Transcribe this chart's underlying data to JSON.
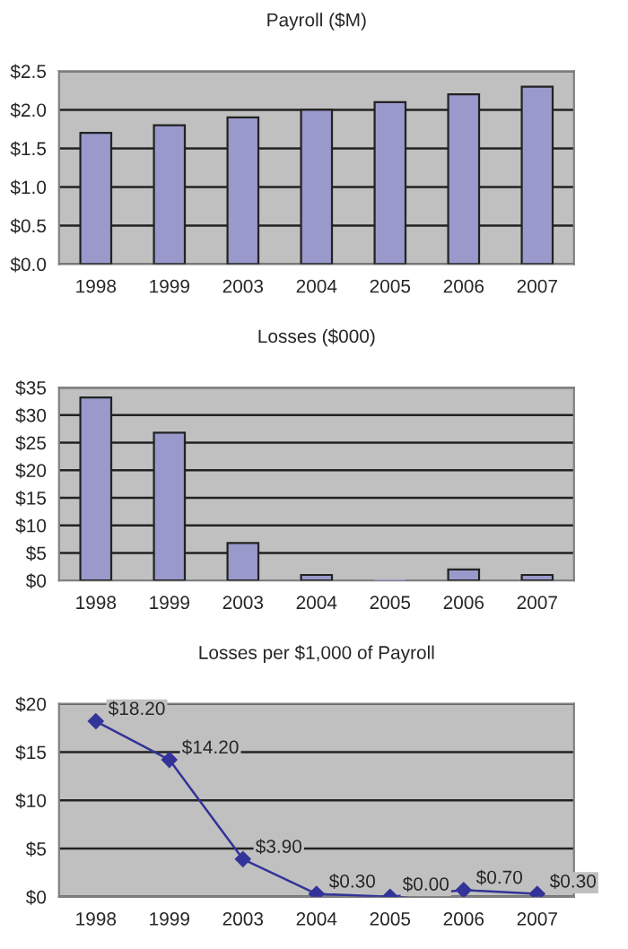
{
  "chart_data": [
    {
      "type": "bar",
      "title": "Payroll ($M)",
      "categories": [
        "1998",
        "1999",
        "2003",
        "2004",
        "2005",
        "2006",
        "2007"
      ],
      "values": [
        1.7,
        1.8,
        1.9,
        2.0,
        2.1,
        2.2,
        2.3
      ],
      "color": "#9999cc",
      "ylim": [
        0,
        2.5
      ],
      "yticks": [
        {
          "value": 0,
          "label": "$0.0"
        },
        {
          "value": 0.5,
          "label": "$0.5"
        },
        {
          "value": 1.0,
          "label": "$1.0"
        },
        {
          "value": 1.5,
          "label": "$1.5"
        },
        {
          "value": 2.0,
          "label": "$2.0"
        },
        {
          "value": 2.5,
          "label": "$2.5"
        }
      ],
      "grid": "y"
    },
    {
      "type": "bar",
      "title": "Losses ($000)",
      "categories": [
        "1998",
        "1999",
        "2003",
        "2004",
        "2005",
        "2006",
        "2007"
      ],
      "values": [
        33.2,
        26.8,
        6.8,
        1.0,
        0,
        2.0,
        1.0
      ],
      "color": "#9999cc",
      "ylim": [
        0,
        35
      ],
      "yticks": [
        {
          "value": 0,
          "label": "$0"
        },
        {
          "value": 5,
          "label": "$5"
        },
        {
          "value": 10,
          "label": "$10"
        },
        {
          "value": 15,
          "label": "$15"
        },
        {
          "value": 20,
          "label": "$20"
        },
        {
          "value": 25,
          "label": "$25"
        },
        {
          "value": 30,
          "label": "$30"
        },
        {
          "value": 35,
          "label": "$35"
        }
      ],
      "grid": "y"
    },
    {
      "type": "line",
      "title": "Losses per $1,000 of Payroll",
      "categories": [
        "1998",
        "1999",
        "2003",
        "2004",
        "2005",
        "2006",
        "2007"
      ],
      "values": [
        18.2,
        14.2,
        3.9,
        0.3,
        0.0,
        0.7,
        0.3
      ],
      "value_labels": [
        "$18.20",
        "$14.20",
        "$3.90",
        "$0.30",
        "$0.00",
        "$0.70",
        "$0.30"
      ],
      "color": "#333399",
      "marker": "diamond",
      "ylim": [
        0,
        20
      ],
      "yticks": [
        {
          "value": 0,
          "label": "$0"
        },
        {
          "value": 5,
          "label": "$5"
        },
        {
          "value": 10,
          "label": "$10"
        },
        {
          "value": 15,
          "label": "$15"
        },
        {
          "value": 20,
          "label": "$20"
        }
      ],
      "grid": "y"
    }
  ]
}
